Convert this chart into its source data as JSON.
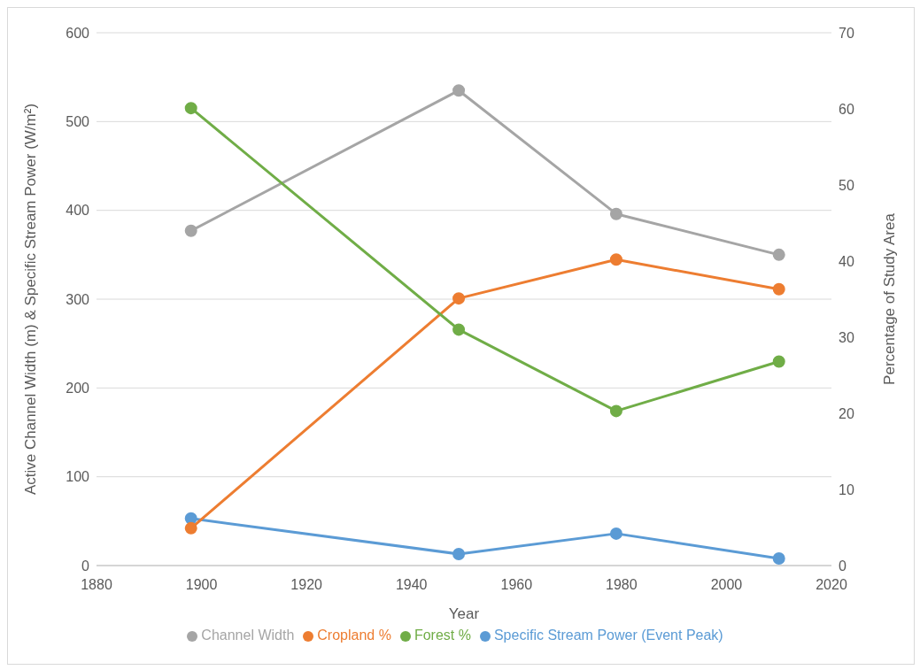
{
  "chart_data": {
    "type": "line",
    "xlabel": "Year",
    "ylabel": "Active Channel Width (m) & Specific Stream Power (W/m²)",
    "y2label": "Percentage of Study Area",
    "x": [
      1898,
      1949,
      1979,
      2010
    ],
    "series": [
      {
        "name": "Specific Stream Power (Event Peak)",
        "color": "#5b9bd5",
        "values": [
          53,
          13,
          36,
          8
        ]
      },
      {
        "name": "Channel Width",
        "color": "#a5a5a5",
        "values": [
          377,
          535,
          396,
          350
        ]
      },
      {
        "name": "Cropland %",
        "color": "#ed7d31",
        "values": [
          4.9,
          35.1,
          40.2,
          36.3
        ],
        "axis": "y2"
      },
      {
        "name": "Forest %",
        "color": "#70ad47",
        "values": [
          60.1,
          31.0,
          20.3,
          26.8
        ],
        "axis": "y2"
      }
    ],
    "xlim": [
      1880,
      2020
    ],
    "xticks": [
      1880,
      1900,
      1920,
      1940,
      1960,
      1980,
      2000,
      2020
    ],
    "ylim": [
      0,
      600
    ],
    "yticks": [
      0,
      100,
      200,
      300,
      400,
      500,
      600
    ],
    "y2lim": [
      0,
      70
    ],
    "y2ticks": [
      0,
      10,
      20,
      30,
      40,
      50,
      60,
      70
    ],
    "grid": "y",
    "legend": "bottom",
    "marker": "circle",
    "line_style": "solid"
  }
}
